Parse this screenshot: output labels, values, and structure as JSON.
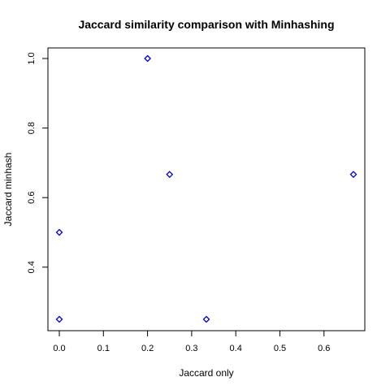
{
  "chart_data": {
    "type": "scatter",
    "title": "Jaccard similarity comparison with Minhashing",
    "xlabel": "Jaccard only",
    "ylabel": "Jaccard minhash",
    "xlim": [
      0.0,
      0.6667
    ],
    "ylim": [
      0.25,
      1.0
    ],
    "xticks": [
      "0.0",
      "0.1",
      "0.2",
      "0.3",
      "0.4",
      "0.5",
      "0.6"
    ],
    "yticks": [
      "0.4",
      "0.6",
      "0.8",
      "1.0"
    ],
    "grid": false,
    "marker": "diamond",
    "color": "#0000cc",
    "points": [
      {
        "x": 0.0,
        "y": 0.25
      },
      {
        "x": 0.0,
        "y": 0.5
      },
      {
        "x": 0.2,
        "y": 1.0
      },
      {
        "x": 0.25,
        "y": 0.6667
      },
      {
        "x": 0.3333,
        "y": 0.25
      },
      {
        "x": 0.6667,
        "y": 0.6667
      }
    ]
  }
}
